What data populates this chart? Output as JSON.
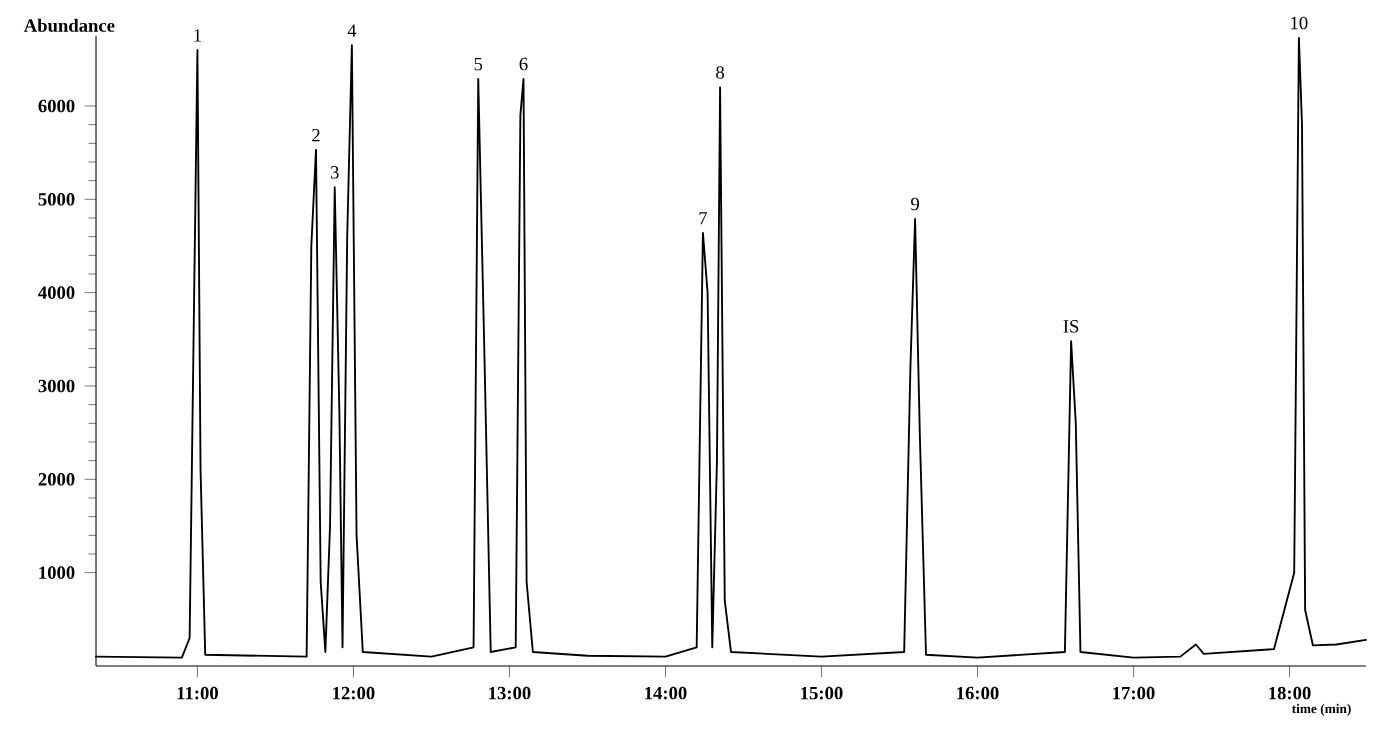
{
  "chart_data": {
    "type": "line",
    "xlabel": "time (min)",
    "ylabel": "Abundance",
    "xlim": [
      10.35,
      18.49
    ],
    "ylim": [
      0,
      6750
    ],
    "xticks": [
      {
        "value": 11,
        "label": "11:00"
      },
      {
        "value": 12,
        "label": "12:00"
      },
      {
        "value": 13,
        "label": "13:00"
      },
      {
        "value": 14,
        "label": "14:00"
      },
      {
        "value": 15,
        "label": "15:00"
      },
      {
        "value": 16,
        "label": "16:00"
      },
      {
        "value": 17,
        "label": "17:00"
      },
      {
        "value": 18,
        "label": "18:00"
      }
    ],
    "yticks": [
      1000,
      2000,
      3000,
      4000,
      5000,
      6000
    ],
    "grid": false,
    "marker": "none",
    "line_style": "solid",
    "series": [
      {
        "color": "#000000",
        "x": [
          10.35,
          10.9,
          10.95,
          10.98,
          11.0,
          11.02,
          11.05,
          11.7,
          11.73,
          11.76,
          11.79,
          11.82,
          11.85,
          11.88,
          11.91,
          11.93,
          11.96,
          11.99,
          12.02,
          12.06,
          12.5,
          12.77,
          12.8,
          12.84,
          12.88,
          13.04,
          13.07,
          13.09,
          13.11,
          13.15,
          13.5,
          14.0,
          14.2,
          14.24,
          14.27,
          14.3,
          14.33,
          14.35,
          14.38,
          14.42,
          15.0,
          15.53,
          15.57,
          15.6,
          15.63,
          15.67,
          16.0,
          16.56,
          16.6,
          16.63,
          16.66,
          17.0,
          17.3,
          17.4,
          17.45,
          17.9,
          18.03,
          18.06,
          18.08,
          18.1,
          18.15,
          18.3,
          18.49
        ],
        "values": [
          100,
          90,
          300,
          4100,
          6600,
          2100,
          120,
          100,
          4500,
          5530,
          900,
          150,
          1500,
          5130,
          2700,
          200,
          4600,
          6650,
          1400,
          150,
          100,
          200,
          6290,
          3300,
          150,
          200,
          5900,
          6290,
          900,
          150,
          110,
          100,
          200,
          4640,
          4000,
          200,
          2200,
          6200,
          700,
          150,
          100,
          150,
          3200,
          4790,
          2500,
          120,
          90,
          150,
          3480,
          2600,
          150,
          90,
          100,
          230,
          130,
          180,
          1000,
          6730,
          5800,
          600,
          220,
          230,
          280
        ]
      }
    ],
    "annotations": [
      {
        "text": "1",
        "x": 11.0,
        "y": 6600
      },
      {
        "text": "2",
        "x": 11.76,
        "y": 5530
      },
      {
        "text": "3",
        "x": 11.88,
        "y": 5130
      },
      {
        "text": "4",
        "x": 11.99,
        "y": 6650
      },
      {
        "text": "5",
        "x": 12.8,
        "y": 6290
      },
      {
        "text": "6",
        "x": 13.09,
        "y": 6290
      },
      {
        "text": "7",
        "x": 14.24,
        "y": 4640
      },
      {
        "text": "8",
        "x": 14.35,
        "y": 6200
      },
      {
        "text": "9",
        "x": 15.6,
        "y": 4790
      },
      {
        "text": "IS",
        "x": 16.6,
        "y": 3480
      },
      {
        "text": "10",
        "x": 18.06,
        "y": 6730
      }
    ]
  }
}
